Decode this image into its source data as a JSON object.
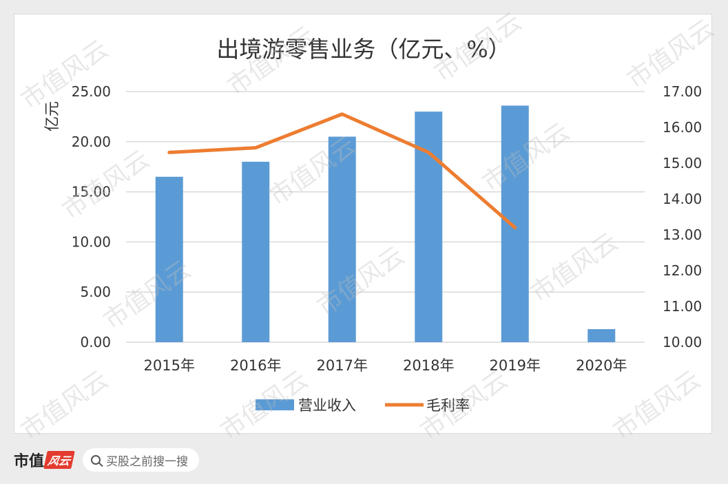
{
  "chart_data": {
    "type": "bar",
    "title": "出境游零售业务（亿元、%）",
    "ylabel": "亿元",
    "categories": [
      "2015年",
      "2016年",
      "2017年",
      "2018年",
      "2019年",
      "2020年"
    ],
    "series": [
      {
        "name": "营业收入",
        "type": "bar",
        "axis": "left",
        "values": [
          16.5,
          18.0,
          20.5,
          23.0,
          23.6,
          1.3
        ],
        "color": "#5b9bd5"
      },
      {
        "name": "毛利率",
        "type": "line",
        "axis": "right",
        "values": [
          15.3,
          15.43,
          16.37,
          15.3,
          13.2,
          null
        ],
        "color": "#ed7d31"
      }
    ],
    "ylim": [
      0,
      25
    ],
    "y_ticks": [
      "0.00",
      "5.00",
      "10.00",
      "15.00",
      "20.00",
      "25.00"
    ],
    "y2lim": [
      10,
      17
    ],
    "y2_ticks": [
      "10.00",
      "11.00",
      "12.00",
      "13.00",
      "14.00",
      "15.00",
      "16.00",
      "17.00"
    ],
    "grid": true,
    "legend": "bottom"
  },
  "watermark": "市值风云",
  "footer": {
    "brand": "市值",
    "brand_mark": "风云",
    "search_placeholder": "买股之前搜一搜"
  }
}
